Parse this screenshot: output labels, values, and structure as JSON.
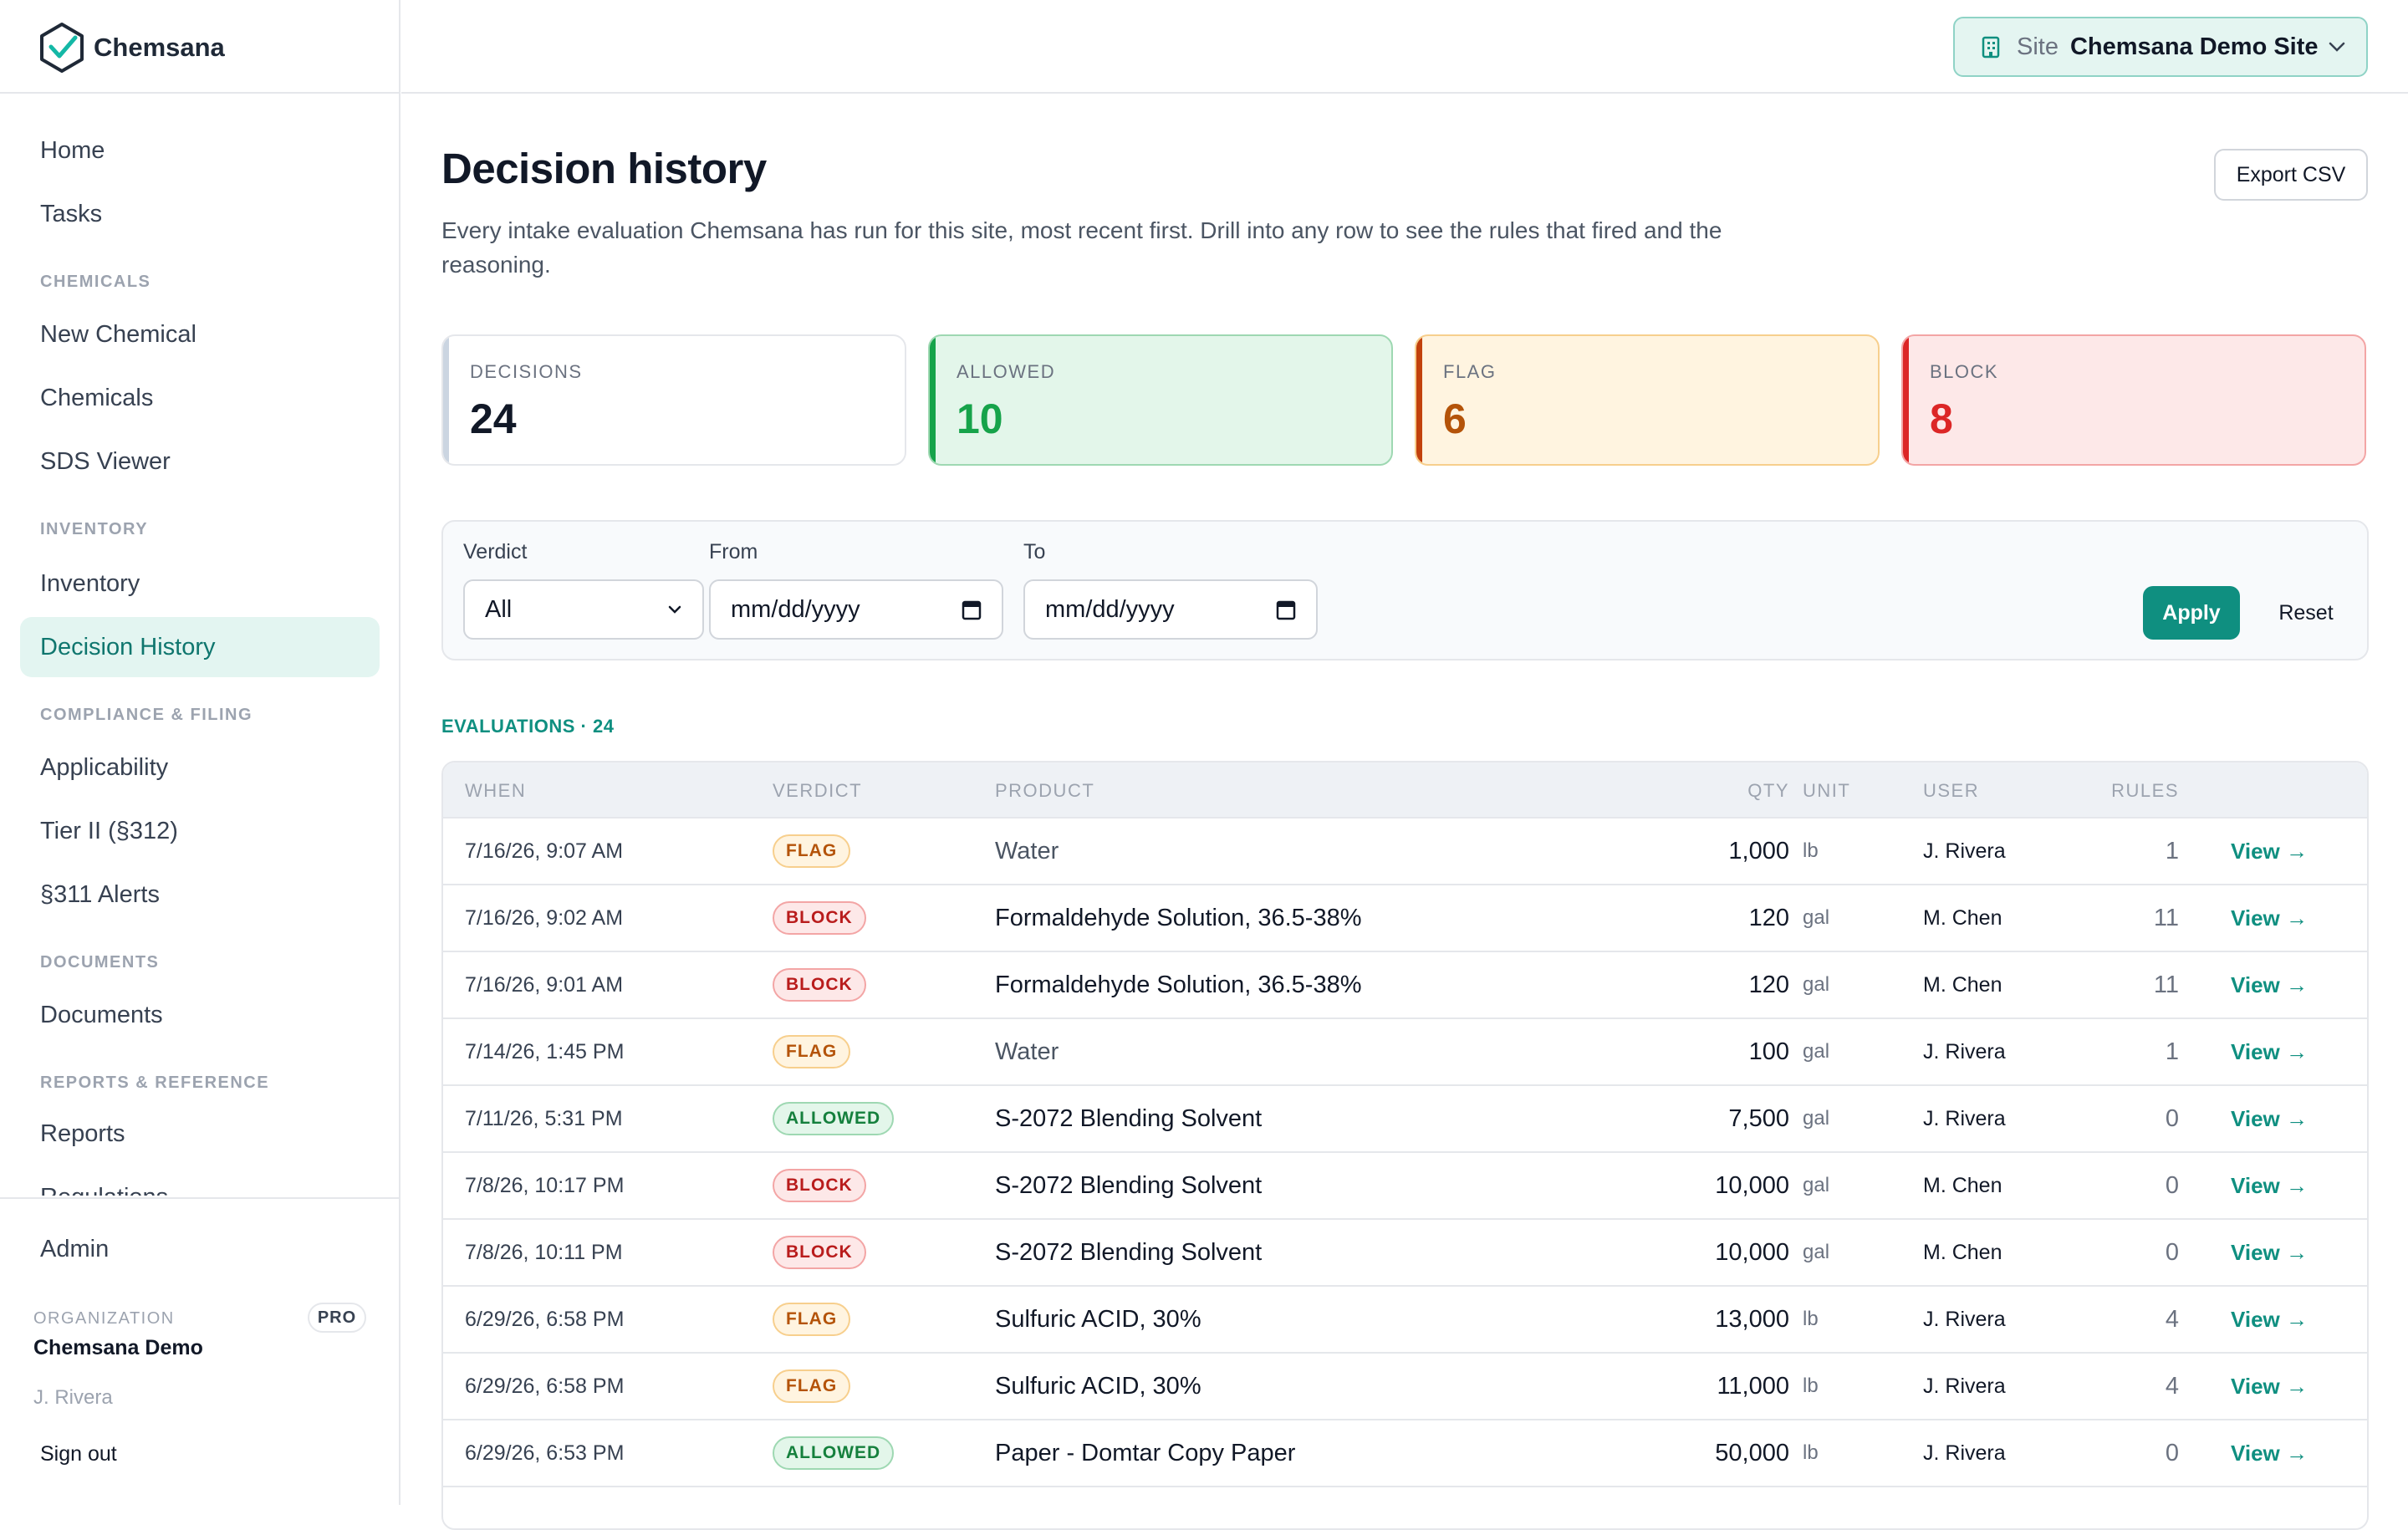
{
  "app": {
    "name": "Chemsana"
  },
  "sidebar": {
    "items": [
      {
        "label": "Home"
      },
      {
        "label": "Tasks"
      },
      {
        "section": "CHEMICALS"
      },
      {
        "label": "New Chemical"
      },
      {
        "label": "Chemicals"
      },
      {
        "label": "SDS Viewer"
      },
      {
        "section": "INVENTORY"
      },
      {
        "label": "Inventory"
      },
      {
        "label": "Decision History",
        "active": true
      },
      {
        "section": "COMPLIANCE & FILING"
      },
      {
        "label": "Applicability"
      },
      {
        "label": "Tier II (§312)"
      },
      {
        "label": "§311 Alerts"
      },
      {
        "section": "DOCUMENTS"
      },
      {
        "label": "Documents"
      },
      {
        "section": "REPORTS & REFERENCE"
      },
      {
        "label": "Reports"
      },
      {
        "label": "Regulations"
      }
    ],
    "admin": "Admin",
    "org_label": "ORGANIZATION",
    "org_badge": "PRO",
    "org_name": "Chemsana Demo",
    "user": "J. Rivera",
    "sign_out": "Sign out"
  },
  "topbar": {
    "site_label": "Site",
    "site_value": "Chemsana Demo Site"
  },
  "page": {
    "title": "Decision history",
    "subtitle": "Every intake evaluation Chemsana has run for this site, most recent first. Drill into any row to see the rules that fired and the reasoning.",
    "export": "Export CSV"
  },
  "stats": [
    {
      "label": "DECISIONS",
      "value": "24",
      "bg": "#ffffff",
      "border": "#e5e7eb",
      "accent": "#cbd5e1",
      "color": "#111827"
    },
    {
      "label": "ALLOWED",
      "value": "10",
      "bg": "#e3f6ea",
      "border": "#9ed8b2",
      "accent": "#16a34a",
      "color": "#16a34a"
    },
    {
      "label": "FLAG",
      "value": "6",
      "bg": "#fff4e0",
      "border": "#f7cf8d",
      "accent": "#c2410c",
      "color": "#b45309"
    },
    {
      "label": "BLOCK",
      "value": "8",
      "bg": "#fde8e8",
      "border": "#f3a5a5",
      "accent": "#dc2626",
      "color": "#dc2626"
    }
  ],
  "filters": {
    "verdict_label": "Verdict",
    "verdict_value": "All",
    "from_label": "From",
    "from_placeholder": "mm/dd/yyyy",
    "to_label": "To",
    "to_placeholder": "mm/dd/yyyy",
    "apply": "Apply",
    "reset": "Reset"
  },
  "evaluations_label": "EVALUATIONS · 24",
  "table": {
    "columns": [
      "WHEN",
      "VERDICT",
      "PRODUCT",
      "QTY",
      "UNIT",
      "USER",
      "RULES"
    ],
    "view_label": "View →",
    "rows": [
      {
        "when": "7/16/26, 9:07 AM",
        "verdict": "FLAG",
        "product": "Water",
        "qty": "1,000",
        "unit": "lb",
        "user": "J. Rivera",
        "rules": "1",
        "muted": true
      },
      {
        "when": "7/16/26, 9:02 AM",
        "verdict": "BLOCK",
        "product": "Formaldehyde Solution, 36.5-38%",
        "qty": "120",
        "unit": "gal",
        "user": "M. Chen",
        "rules": "11"
      },
      {
        "when": "7/16/26, 9:01 AM",
        "verdict": "BLOCK",
        "product": "Formaldehyde Solution, 36.5-38%",
        "qty": "120",
        "unit": "gal",
        "user": "M. Chen",
        "rules": "11"
      },
      {
        "when": "7/14/26, 1:45 PM",
        "verdict": "FLAG",
        "product": "Water",
        "qty": "100",
        "unit": "gal",
        "user": "J. Rivera",
        "rules": "1",
        "muted": true
      },
      {
        "when": "7/11/26, 5:31 PM",
        "verdict": "ALLOWED",
        "product": "S-2072 Blending Solvent",
        "qty": "7,500",
        "unit": "gal",
        "user": "J. Rivera",
        "rules": "0"
      },
      {
        "when": "7/8/26, 10:17 PM",
        "verdict": "BLOCK",
        "product": "S-2072 Blending Solvent",
        "qty": "10,000",
        "unit": "gal",
        "user": "M. Chen",
        "rules": "0"
      },
      {
        "when": "7/8/26, 10:11 PM",
        "verdict": "BLOCK",
        "product": "S-2072 Blending Solvent",
        "qty": "10,000",
        "unit": "gal",
        "user": "M. Chen",
        "rules": "0"
      },
      {
        "when": "6/29/26, 6:58 PM",
        "verdict": "FLAG",
        "product": "Sulfuric ACID, 30%",
        "qty": "13,000",
        "unit": "lb",
        "user": "J. Rivera",
        "rules": "4"
      },
      {
        "when": "6/29/26, 6:58 PM",
        "verdict": "FLAG",
        "product": "Sulfuric ACID, 30%",
        "qty": "11,000",
        "unit": "lb",
        "user": "J. Rivera",
        "rules": "4"
      },
      {
        "when": "6/29/26, 6:53 PM",
        "verdict": "ALLOWED",
        "product": "Paper - Domtar Copy Paper",
        "qty": "50,000",
        "unit": "lb",
        "user": "J. Rivera",
        "rules": "0"
      }
    ]
  }
}
